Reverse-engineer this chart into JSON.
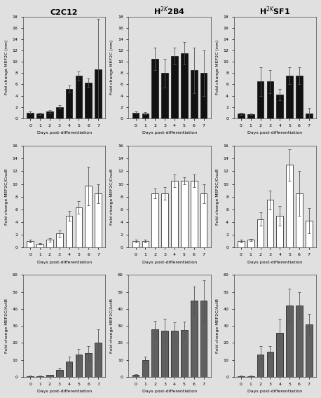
{
  "titles": [
    "C2C12",
    "H$^{2K}$2B4",
    "H$^{2K}$SF1"
  ],
  "days_labels": [
    "0",
    "1",
    "2",
    "3",
    "4",
    "5",
    "6",
    "7"
  ],
  "row1_ylabel": "Fold change MEF2C (nm)",
  "row1_ylim": [
    0,
    18
  ],
  "row1_yticks": [
    0,
    2,
    4,
    6,
    8,
    10,
    12,
    14,
    16,
    18
  ],
  "row1_color": "#111111",
  "row1_data": [
    [
      1.0,
      0.8,
      1.2,
      2.0,
      5.2,
      7.5,
      6.3,
      8.6
    ],
    [
      1.0,
      0.9,
      10.5,
      8.0,
      11.0,
      11.5,
      8.5,
      8.0
    ],
    [
      0.8,
      0.7,
      6.5,
      6.5,
      4.2,
      7.5,
      7.5,
      0.9
    ]
  ],
  "row1_err": [
    [
      0.2,
      0.15,
      0.3,
      0.3,
      0.6,
      0.8,
      0.7,
      9.0
    ],
    [
      0.2,
      0.2,
      2.0,
      2.5,
      1.5,
      2.0,
      4.0,
      4.0
    ],
    [
      0.2,
      0.15,
      2.5,
      2.0,
      1.0,
      1.5,
      1.5,
      1.0
    ]
  ],
  "row2_ylabel": "Fold change MEF2C/CnuB",
  "row2_ylim": [
    0,
    16
  ],
  "row2_yticks": [
    0,
    2,
    4,
    6,
    8,
    10,
    12,
    14,
    16
  ],
  "row2_color": "#ffffff",
  "row2_data": [
    [
      1.0,
      0.6,
      1.2,
      2.2,
      5.0,
      6.3,
      9.7,
      8.5
    ],
    [
      1.0,
      1.0,
      8.5,
      8.5,
      10.5,
      10.5,
      10.5,
      8.5
    ],
    [
      1.0,
      1.2,
      4.5,
      7.5,
      5.0,
      13.0,
      8.5,
      4.2
    ]
  ],
  "row2_err": [
    [
      0.2,
      0.15,
      0.3,
      0.5,
      0.8,
      1.0,
      3.0,
      1.5
    ],
    [
      0.2,
      0.2,
      0.8,
      1.0,
      1.0,
      0.5,
      1.0,
      1.5
    ],
    [
      0.2,
      0.2,
      1.0,
      1.5,
      1.5,
      2.5,
      3.5,
      2.0
    ]
  ],
  "row3_ylabel": "Fold change MEF2C/ActB",
  "row3_ylim": [
    0,
    60
  ],
  "row3_yticks": [
    0,
    10,
    20,
    30,
    40,
    50,
    60
  ],
  "row3_color": "#606060",
  "row3_data": [
    [
      0.5,
      0.5,
      1.0,
      4.0,
      9.0,
      13.0,
      14.0,
      20.0
    ],
    [
      1.0,
      10.0,
      28.0,
      27.0,
      27.0,
      27.5,
      45.0,
      45.0
    ],
    [
      0.5,
      0.5,
      13.0,
      15.0,
      26.0,
      42.0,
      42.0,
      31.0
    ]
  ],
  "row3_err": [
    [
      0.1,
      0.1,
      0.3,
      1.5,
      3.0,
      3.5,
      4.0,
      8.0
    ],
    [
      0.5,
      2.0,
      5.0,
      7.0,
      5.0,
      5.0,
      8.0,
      12.0
    ],
    [
      0.1,
      0.1,
      5.0,
      3.0,
      8.0,
      10.0,
      8.0,
      6.0
    ]
  ],
  "xlabel": "Days post-differentiation",
  "background_color": "#e0e0e0",
  "bar_edge_color": "#111111",
  "bar_edge_width": 0.5,
  "bar_width": 0.7,
  "fontsize_title": 8,
  "fontsize_label": 4.5,
  "fontsize_tick": 4.5
}
